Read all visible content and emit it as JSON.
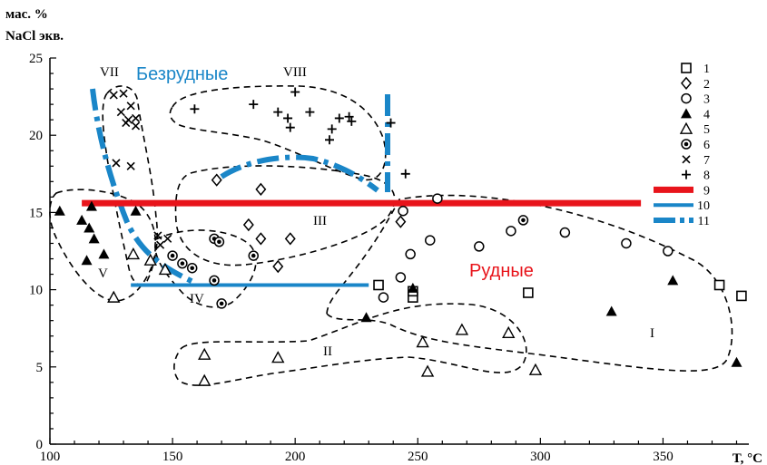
{
  "chart_data": {
    "type": "scatter",
    "ylabel_line1": "мас. %",
    "ylabel_line2": "NaCl экв.",
    "xlabel": "T, °C",
    "xlim": [
      100,
      385
    ],
    "ylim": [
      0,
      25
    ],
    "xticks": [
      100,
      150,
      200,
      250,
      300,
      350
    ],
    "yticks": [
      0,
      5,
      10,
      15,
      20,
      25
    ],
    "text_labels": {
      "barren": "Безрудные",
      "ore": "Рудные"
    },
    "colors": {
      "red": "#e8141b",
      "blue": "#1a86c8",
      "black": "#000000"
    },
    "legend_position": "right",
    "legend": [
      "1",
      "2",
      "3",
      "4",
      "5",
      "6",
      "7",
      "8",
      "9",
      "10",
      "11"
    ],
    "series": [
      {
        "name": "1",
        "marker": "open-square",
        "points": [
          [
            234,
            10.3
          ],
          [
            248,
            9.5
          ],
          [
            248,
            9.9
          ],
          [
            295,
            9.8
          ],
          [
            373,
            10.3
          ],
          [
            382,
            9.6
          ]
        ]
      },
      {
        "name": "2",
        "marker": "open-diamond",
        "points": [
          [
            168,
            17.1
          ],
          [
            186,
            16.5
          ],
          [
            181,
            14.2
          ],
          [
            186,
            13.3
          ],
          [
            198,
            13.3
          ],
          [
            193,
            11.5
          ],
          [
            243,
            14.4
          ]
        ]
      },
      {
        "name": "3",
        "marker": "open-circle",
        "points": [
          [
            258,
            15.9
          ],
          [
            244,
            15.1
          ],
          [
            243,
            10.8
          ],
          [
            236,
            9.5
          ],
          [
            247,
            12.3
          ],
          [
            255,
            13.2
          ],
          [
            275,
            12.8
          ],
          [
            288,
            13.8
          ],
          [
            310,
            13.7
          ],
          [
            335,
            13.0
          ],
          [
            352,
            12.5
          ]
        ]
      },
      {
        "name": "4",
        "marker": "filled-triangle",
        "points": [
          [
            104,
            15.1
          ],
          [
            117,
            15.4
          ],
          [
            113,
            14.5
          ],
          [
            116,
            14.0
          ],
          [
            118,
            13.3
          ],
          [
            115,
            11.9
          ],
          [
            122,
            12.3
          ],
          [
            135,
            15.1
          ],
          [
            248,
            10.1
          ],
          [
            229,
            8.2
          ],
          [
            329,
            8.6
          ],
          [
            354,
            10.6
          ],
          [
            380,
            5.3
          ]
        ]
      },
      {
        "name": "5",
        "marker": "open-triangle",
        "points": [
          [
            126,
            9.5
          ],
          [
            134,
            12.3
          ],
          [
            141,
            11.9
          ],
          [
            147,
            11.3
          ],
          [
            163,
            5.8
          ],
          [
            163,
            4.1
          ],
          [
            193,
            5.6
          ],
          [
            252,
            6.6
          ],
          [
            268,
            7.4
          ],
          [
            287,
            7.2
          ],
          [
            254,
            4.7
          ],
          [
            298,
            4.8
          ]
        ]
      },
      {
        "name": "6",
        "marker": "dotted-circle",
        "points": [
          [
            150,
            12.2
          ],
          [
            154,
            11.7
          ],
          [
            158,
            11.4
          ],
          [
            167,
            13.3
          ],
          [
            169,
            13.1
          ],
          [
            167,
            10.6
          ],
          [
            170,
            9.1
          ],
          [
            183,
            12.2
          ],
          [
            293,
            14.5
          ]
        ]
      },
      {
        "name": "7",
        "marker": "x-cross",
        "points": [
          [
            126,
            22.6
          ],
          [
            130,
            22.7
          ],
          [
            133,
            21.9
          ],
          [
            129,
            21.5
          ],
          [
            132,
            21.0
          ],
          [
            135,
            21.1
          ],
          [
            131,
            20.8
          ],
          [
            135,
            20.6
          ],
          [
            127,
            18.2
          ],
          [
            133,
            18.0
          ],
          [
            144,
            13.5
          ],
          [
            148,
            13.3
          ],
          [
            145,
            12.9
          ]
        ]
      },
      {
        "name": "8",
        "marker": "plus",
        "points": [
          [
            159,
            21.7
          ],
          [
            183,
            22.0
          ],
          [
            200,
            22.8
          ],
          [
            193,
            21.5
          ],
          [
            197,
            21.1
          ],
          [
            206,
            21.5
          ],
          [
            218,
            21.1
          ],
          [
            222,
            21.2
          ],
          [
            223,
            20.9
          ],
          [
            215,
            20.4
          ],
          [
            239,
            20.8
          ],
          [
            198,
            20.5
          ],
          [
            214,
            19.7
          ],
          [
            245,
            17.5
          ]
        ]
      }
    ],
    "zones": [
      "I",
      "II",
      "III",
      "IV",
      "V",
      "VII",
      "VIII"
    ],
    "red_line": {
      "x": [
        113,
        341
      ],
      "y": 15.6
    },
    "blue_solid_line": {
      "x": [
        133,
        230
      ],
      "y": 10.3
    }
  }
}
